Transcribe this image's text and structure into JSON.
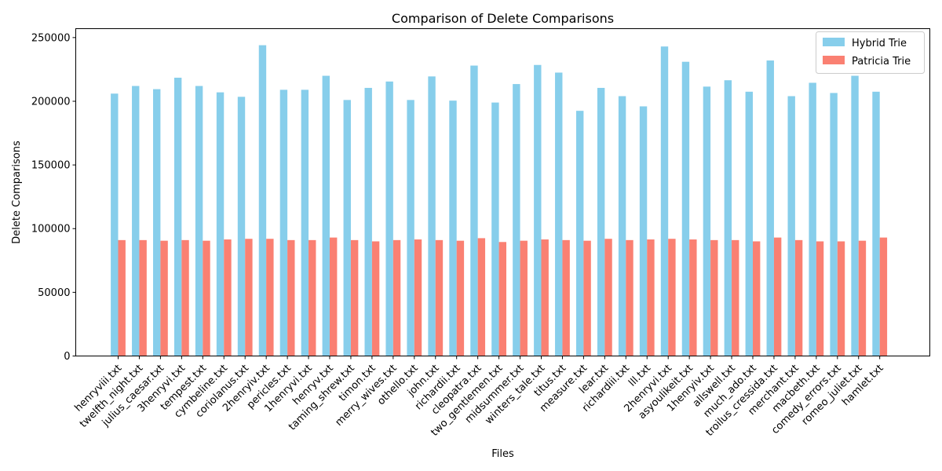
{
  "chart_data": {
    "type": "bar",
    "title": "Comparison of Delete Comparisons",
    "xlabel": "Files",
    "ylabel": "Delete Comparisons",
    "ylim": [
      0,
      257000
    ],
    "yticks": [
      0,
      50000,
      100000,
      150000,
      200000,
      250000
    ],
    "grid": false,
    "legend_position": "top-right",
    "categories": [
      "henryviii.txt",
      "twelfth_night.txt",
      "julius_caesar.txt",
      "3henryvi.txt",
      "tempest.txt",
      "cymbeline.txt",
      "coriolanus.txt",
      "2henryiv.txt",
      "pericles.txt",
      "1henryvi.txt",
      "henryv.txt",
      "taming_shrew.txt",
      "timon.txt",
      "merry_wives.txt",
      "othello.txt",
      "john.txt",
      "richardii.txt",
      "cleopatra.txt",
      "two_gentlemen.txt",
      "midsummer.txt",
      "winters_tale.txt",
      "titus.txt",
      "measure.txt",
      "lear.txt",
      "richardiii.txt",
      "lll.txt",
      "2henryvi.txt",
      "asyoulikeit.txt",
      "1henryiv.txt",
      "allswell.txt",
      "much_ado.txt",
      "troilus_cressida.txt",
      "merchant.txt",
      "macbeth.txt",
      "comedy_errors.txt",
      "romeo_juliet.txt",
      "hamlet.txt"
    ],
    "series": [
      {
        "name": "Hybrid Trie",
        "color": "#87ceeb",
        "values": [
          206000,
          212000,
          209500,
          218500,
          212000,
          207000,
          203500,
          244000,
          209000,
          209000,
          220000,
          201000,
          210500,
          215500,
          201000,
          219500,
          200500,
          228000,
          199000,
          213500,
          228500,
          222500,
          192500,
          210500,
          204000,
          196000,
          243000,
          231000,
          211500,
          216500,
          207500,
          232000,
          204000,
          214500,
          206500,
          220000,
          207500
        ]
      },
      {
        "name": "Patricia Trie",
        "color": "#fa8072",
        "values": [
          91000,
          91000,
          90500,
          91000,
          90500,
          91500,
          92000,
          92000,
          91000,
          91000,
          93000,
          91000,
          90000,
          91000,
          91500,
          91000,
          90500,
          92500,
          89500,
          90500,
          91500,
          91000,
          90500,
          92000,
          91000,
          91500,
          92000,
          91500,
          91000,
          91000,
          90000,
          93000,
          91000,
          90000,
          90000,
          90500,
          93000
        ]
      }
    ]
  }
}
